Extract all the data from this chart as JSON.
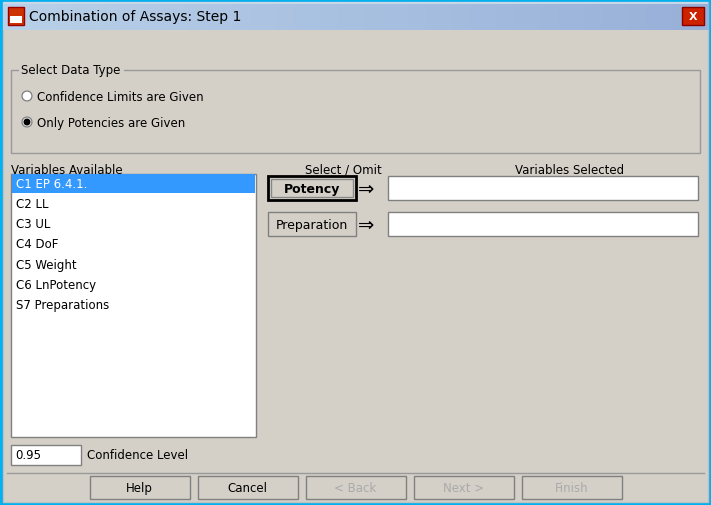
{
  "title": "Combination of Assays: Step 1",
  "bg_color": "#d4d0c8",
  "title_bar_gradient_left": "#a8c4e0",
  "title_bar_gradient_right": "#6090c0",
  "title_text_color": "#000000",
  "section_title": "Select Data Type",
  "radio_options": [
    "Confidence Limits are Given",
    "Only Potencies are Given"
  ],
  "radio_selected": 1,
  "list_label": "Variables Available",
  "list_items": [
    "C1 EP 6.4.1.",
    "C2 LL",
    "C3 UL",
    "C4 DoF",
    "C5 Weight",
    "C6 LnPotency",
    "S7 Preparations"
  ],
  "list_selected": 0,
  "list_selected_color": "#3399ff",
  "middle_label": "Select / Omit",
  "buttons_middle": [
    "Potency",
    "Preparation"
  ],
  "right_label": "Variables Selected",
  "confidence_label": "Confidence Level",
  "confidence_value": "0.95",
  "bottom_buttons": [
    "Help",
    "Cancel",
    "< Back",
    "Next >",
    "Finish"
  ],
  "bottom_buttons_enabled": [
    true,
    true,
    false,
    false,
    false
  ],
  "white": "#ffffff",
  "black": "#000000",
  "gray": "#d4d0c8",
  "dark_gray": "#808080",
  "border_color": "#808080",
  "outer_border": "#00b0f0"
}
